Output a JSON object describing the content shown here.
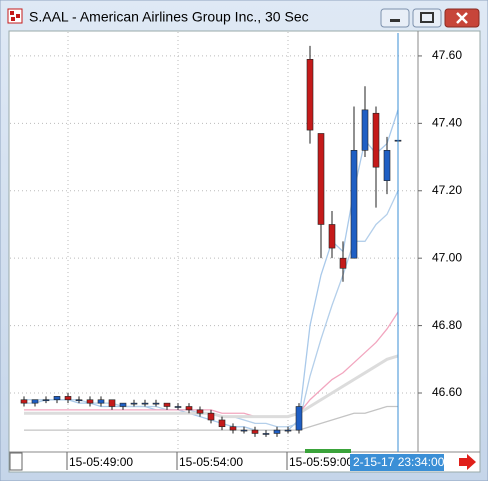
{
  "chart_data": {
    "type": "candlestick",
    "title": "S.AAL - American Airlines Group Inc., 30 Sec",
    "cursor_label": "2-15-17 23:34:00",
    "categories": [
      null,
      null,
      null,
      null,
      "15-05:49:00",
      null,
      null,
      null,
      null,
      null,
      null,
      null,
      null,
      null,
      "15-05:54:00",
      null,
      null,
      null,
      null,
      null,
      null,
      null,
      null,
      null,
      "15-05:59:00",
      null,
      null,
      null,
      null,
      null,
      null,
      null,
      null,
      null,
      null
    ],
    "open": [
      46.58,
      46.57,
      46.58,
      46.58,
      46.59,
      46.58,
      46.58,
      46.57,
      46.58,
      46.56,
      46.57,
      46.57,
      46.57,
      46.57,
      46.56,
      46.56,
      46.55,
      46.54,
      46.52,
      46.5,
      46.49,
      46.49,
      46.48,
      46.48,
      46.49,
      46.49,
      47.59,
      47.37,
      47.1,
      47.0,
      47.0,
      47.32,
      47.43,
      47.23,
      47.35
    ],
    "high": [
      46.59,
      46.58,
      46.59,
      46.59,
      46.6,
      46.59,
      46.59,
      46.59,
      46.58,
      46.57,
      46.58,
      46.58,
      46.58,
      46.57,
      46.57,
      46.57,
      46.56,
      46.55,
      46.53,
      46.51,
      46.5,
      46.5,
      46.49,
      46.5,
      46.5,
      46.57,
      47.63,
      47.37,
      47.14,
      47.05,
      47.45,
      47.51,
      47.45,
      47.36,
      47.38
    ],
    "low": [
      46.56,
      46.56,
      46.57,
      46.57,
      46.57,
      46.57,
      46.56,
      46.56,
      46.55,
      46.55,
      46.56,
      46.56,
      46.56,
      46.55,
      46.55,
      46.54,
      46.53,
      46.51,
      46.49,
      46.48,
      46.48,
      46.47,
      46.47,
      46.47,
      46.48,
      46.48,
      47.34,
      47.0,
      47.0,
      46.93,
      47.0,
      47.3,
      47.15,
      47.19,
      47.3
    ],
    "close": [
      46.57,
      46.58,
      46.58,
      46.59,
      46.58,
      46.58,
      46.57,
      46.58,
      46.56,
      46.57,
      46.57,
      46.57,
      46.57,
      46.56,
      46.56,
      46.55,
      46.54,
      46.52,
      46.5,
      46.49,
      46.49,
      46.48,
      46.48,
      46.49,
      46.49,
      46.56,
      47.38,
      47.1,
      47.03,
      46.97,
      47.32,
      47.44,
      47.27,
      47.32,
      47.35
    ],
    "up_color": "#1f5fc4",
    "down_color": "#c41a1a",
    "series": [
      {
        "color": "#a9c9ea",
        "values": [
          46.57,
          46.57,
          46.58,
          46.58,
          46.58,
          46.57,
          46.57,
          46.56,
          46.56,
          46.56,
          46.56,
          46.56,
          46.55,
          46.55,
          46.55,
          46.54,
          46.53,
          46.52,
          46.51,
          46.5,
          46.5,
          46.49,
          46.49,
          46.49,
          46.49,
          46.52,
          46.8,
          46.95,
          47.05,
          47.02,
          47.2,
          47.35,
          47.31,
          47.34,
          47.44
        ]
      },
      {
        "color": "#b4cfea",
        "values": [
          46.58,
          46.58,
          46.58,
          46.58,
          46.58,
          46.58,
          46.57,
          46.57,
          46.57,
          46.56,
          46.56,
          46.56,
          46.56,
          46.55,
          46.55,
          46.55,
          46.54,
          46.54,
          46.53,
          46.53,
          46.52,
          46.51,
          46.51,
          46.5,
          46.5,
          46.51,
          46.65,
          46.76,
          46.86,
          46.95,
          47.05,
          47.05,
          47.1,
          47.13,
          47.2
        ]
      },
      {
        "color": "#f2a6bf",
        "values": [
          46.55,
          46.55,
          46.55,
          46.55,
          46.55,
          46.55,
          46.55,
          46.55,
          46.55,
          46.55,
          46.55,
          46.55,
          46.55,
          46.55,
          46.55,
          46.55,
          46.55,
          46.55,
          46.54,
          46.54,
          46.54,
          46.53,
          46.53,
          46.53,
          46.53,
          46.54,
          46.58,
          46.61,
          46.64,
          46.66,
          46.69,
          46.72,
          46.75,
          46.79,
          46.84
        ]
      },
      {
        "color": "#dcdcdc",
        "values": [
          46.54,
          46.54,
          46.54,
          46.54,
          46.54,
          46.54,
          46.54,
          46.54,
          46.54,
          46.54,
          46.54,
          46.54,
          46.54,
          46.54,
          46.54,
          46.54,
          46.54,
          46.54,
          46.53,
          46.53,
          46.53,
          46.53,
          46.53,
          46.53,
          46.53,
          46.54,
          46.56,
          46.58,
          46.6,
          46.62,
          46.64,
          46.66,
          46.68,
          46.7,
          46.71
        ]
      },
      {
        "color": "#c4c4c4",
        "values": [
          46.49,
          46.49,
          46.49,
          46.49,
          46.49,
          46.49,
          46.49,
          46.49,
          46.49,
          46.49,
          46.49,
          46.49,
          46.49,
          46.49,
          46.49,
          46.49,
          46.49,
          46.49,
          46.49,
          46.49,
          46.49,
          46.49,
          46.49,
          46.49,
          46.49,
          46.49,
          46.5,
          46.51,
          46.52,
          46.53,
          46.54,
          46.54,
          46.55,
          46.56,
          46.56
        ]
      }
    ],
    "ylim": [
      46.425,
      47.671
    ],
    "yticks": [
      {
        "value": 46.6,
        "label": "46.60"
      },
      {
        "value": 46.8,
        "label": "46.80"
      },
      {
        "value": 47,
        "label": "47.00"
      },
      {
        "value": 47.2,
        "label": "47.20"
      },
      {
        "value": 47.4,
        "label": "47.40"
      },
      {
        "value": 47.6,
        "label": "47.60"
      }
    ],
    "grid": true
  }
}
